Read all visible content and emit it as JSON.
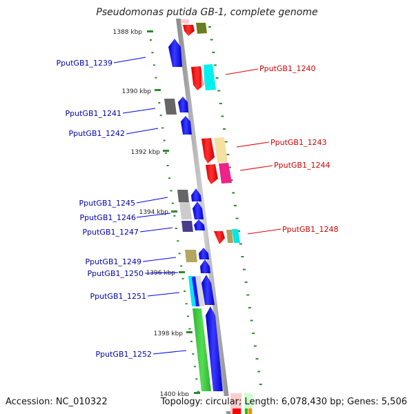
{
  "title": "Pseudomonas putida GB-1, complete genome",
  "footer": {
    "accession": "Accession: NC_010322",
    "topology": "Topology: circular; Length: 6,078,430 bp; Genes: 5,506"
  },
  "scale_labels": [
    "1388 kbp",
    "1390 kbp",
    "1392 kbp",
    "1394 kbp",
    "1396 kbp",
    "1398 kbp",
    "1400 kbp"
  ],
  "left_labels": [
    "PputGB1_1239",
    "PputGB1_1241",
    "PputGB1_1242",
    "PputGB1_1245",
    "PputGB1_1246",
    "PputGB1_1247",
    "PputGB1_1249",
    "PputGB1_1250",
    "PputGB1_1251",
    "PputGB1_1252"
  ],
  "right_labels": [
    "PputGB1_1240",
    "PputGB1_1243",
    "PputGB1_1244",
    "PputGB1_1248"
  ],
  "colors": {
    "forward_gene": "#0000ff",
    "reverse_gene": "#ff0000",
    "backbone": "#a0a0a0",
    "tick": "#2a8a2a",
    "left_label": "#0000aa",
    "right_label": "#cc0000"
  }
}
